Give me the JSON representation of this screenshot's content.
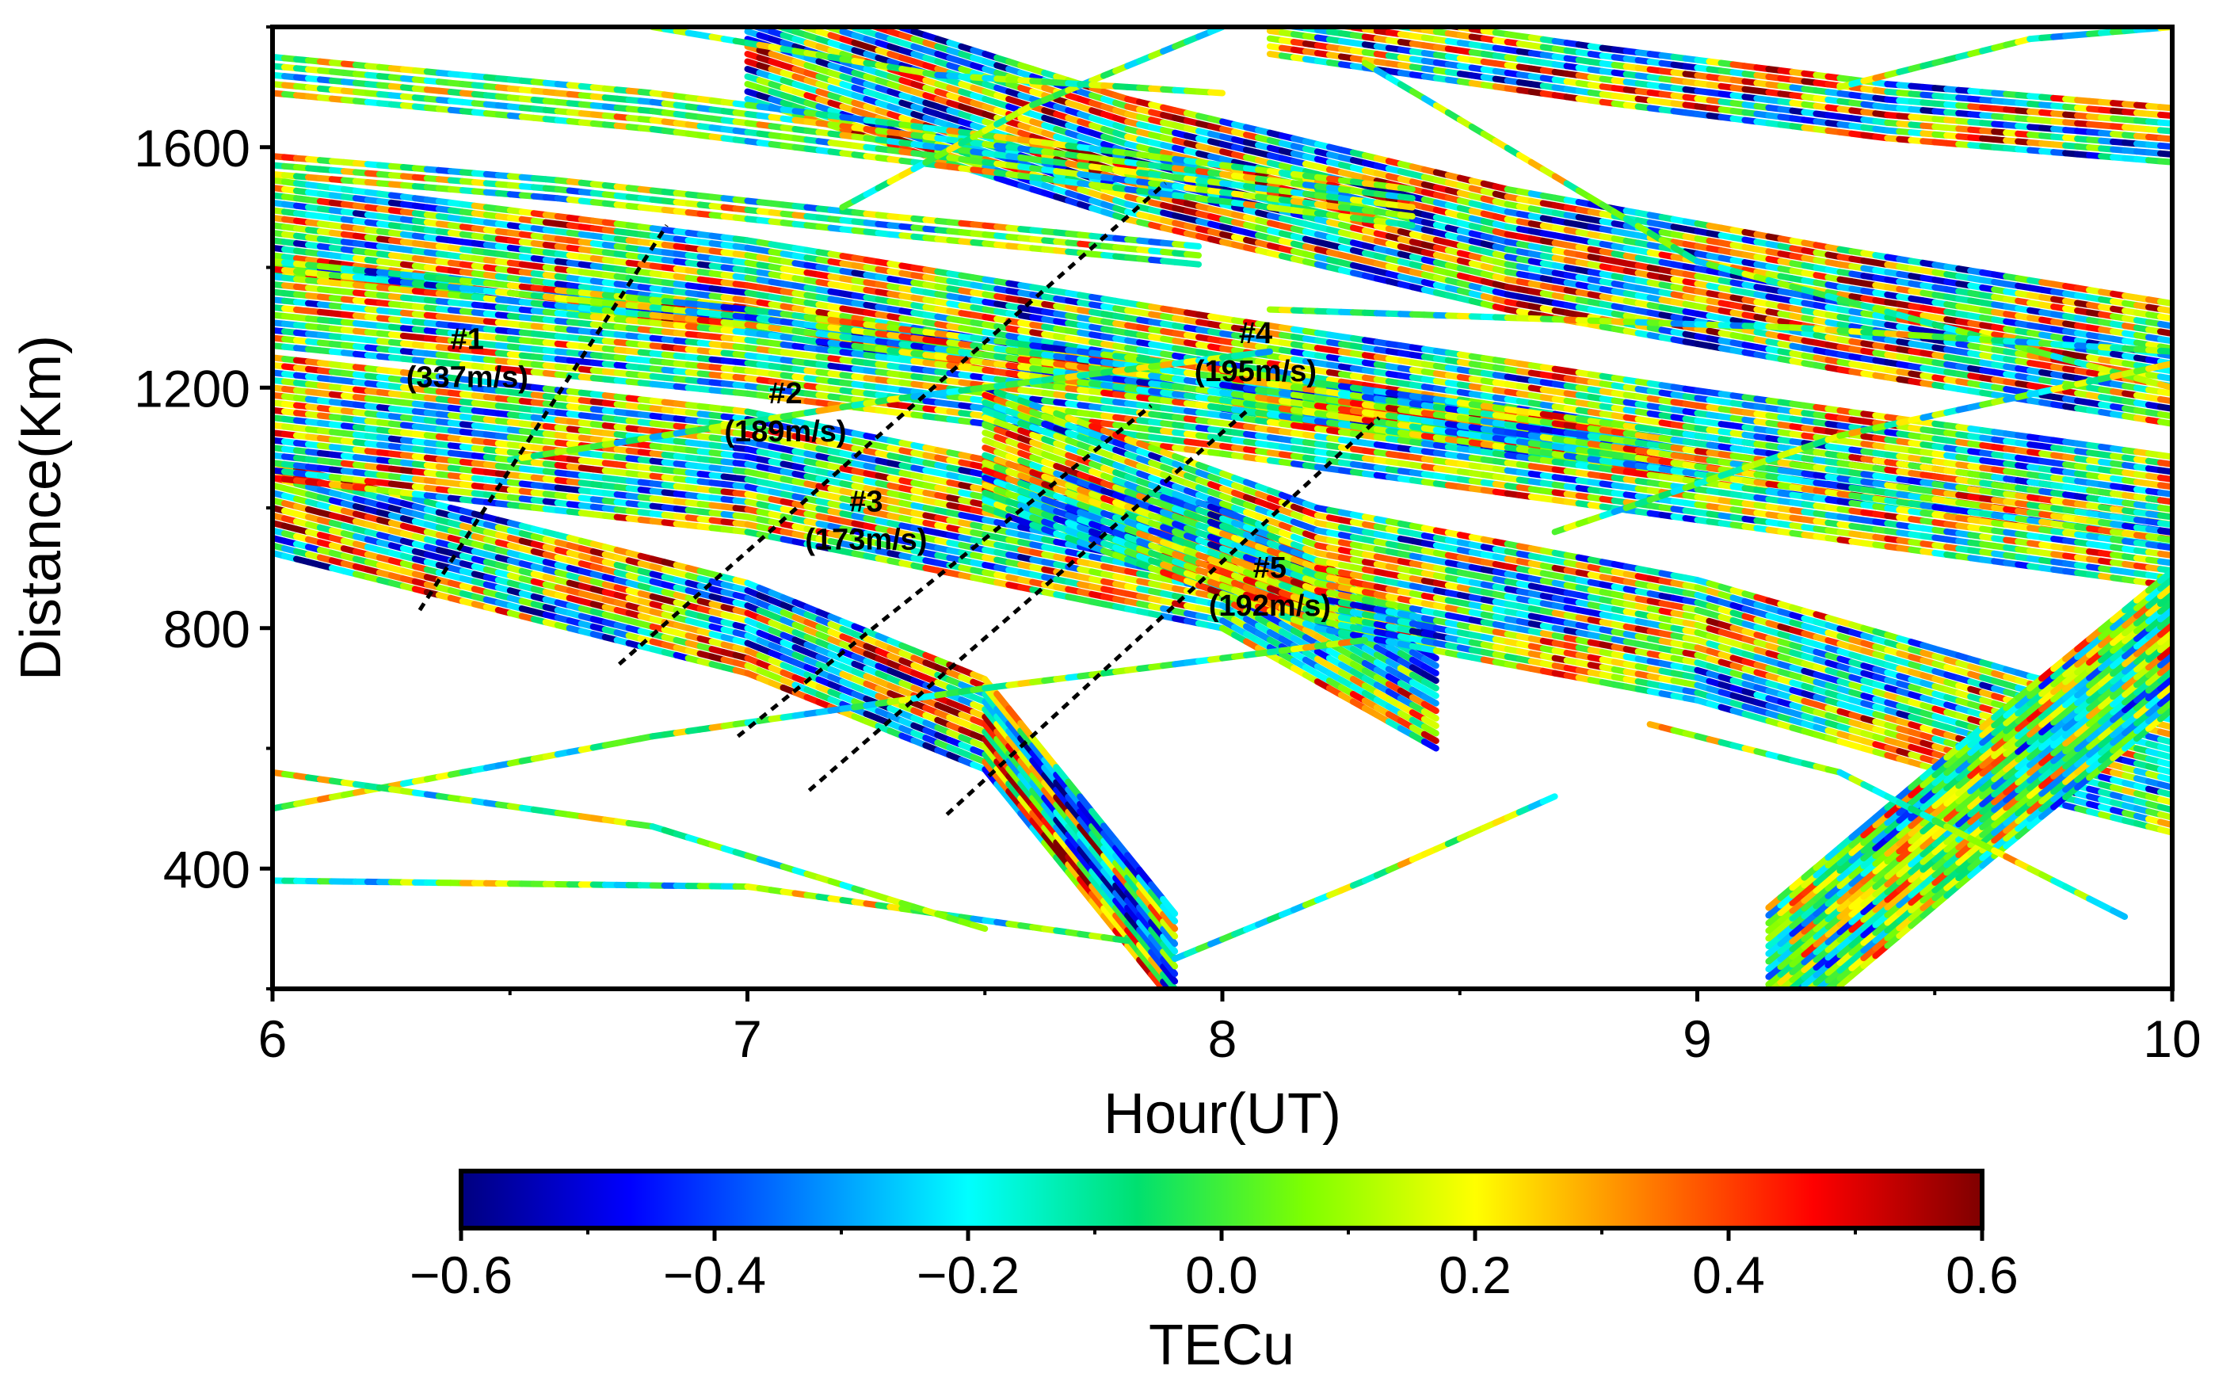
{
  "chart_data": {
    "type": "scatter",
    "subtype": "keogram of TEC perturbation tracks",
    "xlabel": "Hour(UT)",
    "ylabel": "Distance(Km)",
    "xlim": [
      6,
      10
    ],
    "ylim": [
      200,
      1800
    ],
    "x_ticks": [
      6,
      7,
      8,
      9,
      10
    ],
    "y_ticks": [
      400,
      800,
      1200,
      1600
    ],
    "grid": false,
    "colorbar": {
      "label": "TECu",
      "range": [
        -0.6,
        0.6
      ],
      "ticks": [
        "−0.6",
        "−0.4",
        "−0.2",
        "0.0",
        "0.2",
        "0.4",
        "0.6"
      ],
      "colors": [
        "#00007f",
        "#0000ff",
        "#007fff",
        "#00ffff",
        "#00e070",
        "#7fff00",
        "#ffff00",
        "#ff7f00",
        "#ff0000",
        "#7f0000"
      ]
    },
    "fronts": [
      {
        "id": "#1",
        "speed": "(337m/s)",
        "x": [
          6.31,
          6.83
        ],
        "y": [
          830,
          1470
        ],
        "label_x": 6.41,
        "label_y": 1230
      },
      {
        "id": "#2",
        "speed": "(189m/s)",
        "x": [
          6.73,
          7.88
        ],
        "y": [
          740,
          1540
        ],
        "label_x": 7.08,
        "label_y": 1140
      },
      {
        "id": "#3",
        "speed": "(173m/s)",
        "x": [
          6.98,
          7.85
        ],
        "y": [
          620,
          1170
        ],
        "label_x": 7.25,
        "label_y": 960
      },
      {
        "id": "#4",
        "speed": "(195m/s)",
        "x": [
          7.13,
          8.05
        ],
        "y": [
          530,
          1160
        ],
        "label_x": 8.07,
        "label_y": 1240
      },
      {
        "id": "#5",
        "speed": "(192m/s)",
        "x": [
          7.42,
          8.33
        ],
        "y": [
          490,
          1150
        ],
        "label_x": 8.1,
        "label_y": 850
      }
    ],
    "tracks": [
      {
        "x": [
          6.0,
          6.5,
          7.0,
          7.5,
          7.9
        ],
        "y": [
          1000,
          900,
          800,
          640,
          250
        ],
        "band": 150,
        "amp": 0.45
      },
      {
        "x": [
          6.0,
          7.0,
          8.0,
          8.45
        ],
        "y": [
          1150,
          1060,
          900,
          700
        ],
        "band": 200,
        "amp": 0.35
      },
      {
        "x": [
          6.0,
          7.0,
          8.0,
          9.0,
          10.0
        ],
        "y": [
          1470,
          1370,
          1240,
          1120,
          1010
        ],
        "band": 150,
        "amp": 0.35
      },
      {
        "x": [
          6.0,
          7.0,
          8.0,
          9.0,
          10.0
        ],
        "y": [
          1340,
          1260,
          1160,
          1050,
          940
        ],
        "band": 140,
        "amp": 0.3
      },
      {
        "x": [
          7.0,
          7.8,
          8.6,
          9.3,
          10.0
        ],
        "y": [
          1780,
          1580,
          1430,
          1330,
          1240
        ],
        "band": 200,
        "amp": 0.45
      },
      {
        "x": [
          8.1,
          8.8,
          9.4,
          10.0
        ],
        "y": [
          1800,
          1720,
          1660,
          1620
        ],
        "band": 90,
        "amp": 0.45
      },
      {
        "x": [
          7.5,
          8.2,
          9.0,
          9.7,
          10.0
        ],
        "y": [
          1100,
          900,
          780,
          620,
          560
        ],
        "band": 200,
        "amp": 0.35
      },
      {
        "x": [
          9.15,
          9.6,
          10.0
        ],
        "y": [
          220,
          520,
          780
        ],
        "band": 230,
        "amp": 0.25
      },
      {
        "x": [
          6.0,
          6.8,
          7.6,
          8.4
        ],
        "y": [
          1720,
          1660,
          1580,
          1500
        ],
        "band": 60,
        "amp": 0.15
      },
      {
        "x": [
          6.0,
          6.6,
          7.3,
          7.95
        ],
        "y": [
          1570,
          1530,
          1470,
          1420
        ],
        "band": 30,
        "amp": 0.2
      },
      {
        "x": [
          6.0,
          6.8,
          7.5,
          8.3
        ],
        "y": [
          500,
          620,
          700,
          780
        ],
        "band": 14,
        "amp": 0.12
      },
      {
        "x": [
          6.0,
          7.0,
          7.8
        ],
        "y": [
          380,
          370,
          280
        ],
        "band": 14,
        "amp": 0.15
      },
      {
        "x": [
          7.9,
          8.3,
          8.7
        ],
        "y": [
          250,
          380,
          520
        ],
        "band": 12,
        "amp": 0.1
      },
      {
        "x": [
          8.3,
          9.0,
          10.0
        ],
        "y": [
          1740,
          1410,
          1200
        ],
        "band": 14,
        "amp": 0.1
      },
      {
        "x": [
          7.2,
          7.6,
          8.0
        ],
        "y": [
          1500,
          1670,
          1800
        ],
        "band": 12,
        "amp": 0.1
      },
      {
        "x": [
          6.5,
          7.3,
          8.1
        ],
        "y": [
          1080,
          1180,
          1260
        ],
        "band": 12,
        "amp": 0.12
      },
      {
        "x": [
          6.0,
          6.8,
          7.5
        ],
        "y": [
          560,
          470,
          300
        ],
        "band": 12,
        "amp": 0.12
      },
      {
        "x": [
          8.7,
          9.3,
          10.0
        ],
        "y": [
          960,
          1120,
          1240
        ],
        "band": 12,
        "amp": 0.1
      },
      {
        "x": [
          8.1,
          9.2,
          10.0
        ],
        "y": [
          1330,
          1300,
          1260
        ],
        "band": 12,
        "amp": 0.12
      },
      {
        "x": [
          9.3,
          9.7,
          10.0
        ],
        "y": [
          1700,
          1780,
          1800
        ],
        "band": 12,
        "amp": 0.12
      },
      {
        "x": [
          6.8,
          7.4,
          8.0
        ],
        "y": [
          1800,
          1720,
          1690
        ],
        "band": 12,
        "amp": 0.1
      },
      {
        "x": [
          8.9,
          9.3,
          9.9
        ],
        "y": [
          640,
          560,
          320
        ],
        "band": 12,
        "amp": 0.12
      }
    ]
  }
}
